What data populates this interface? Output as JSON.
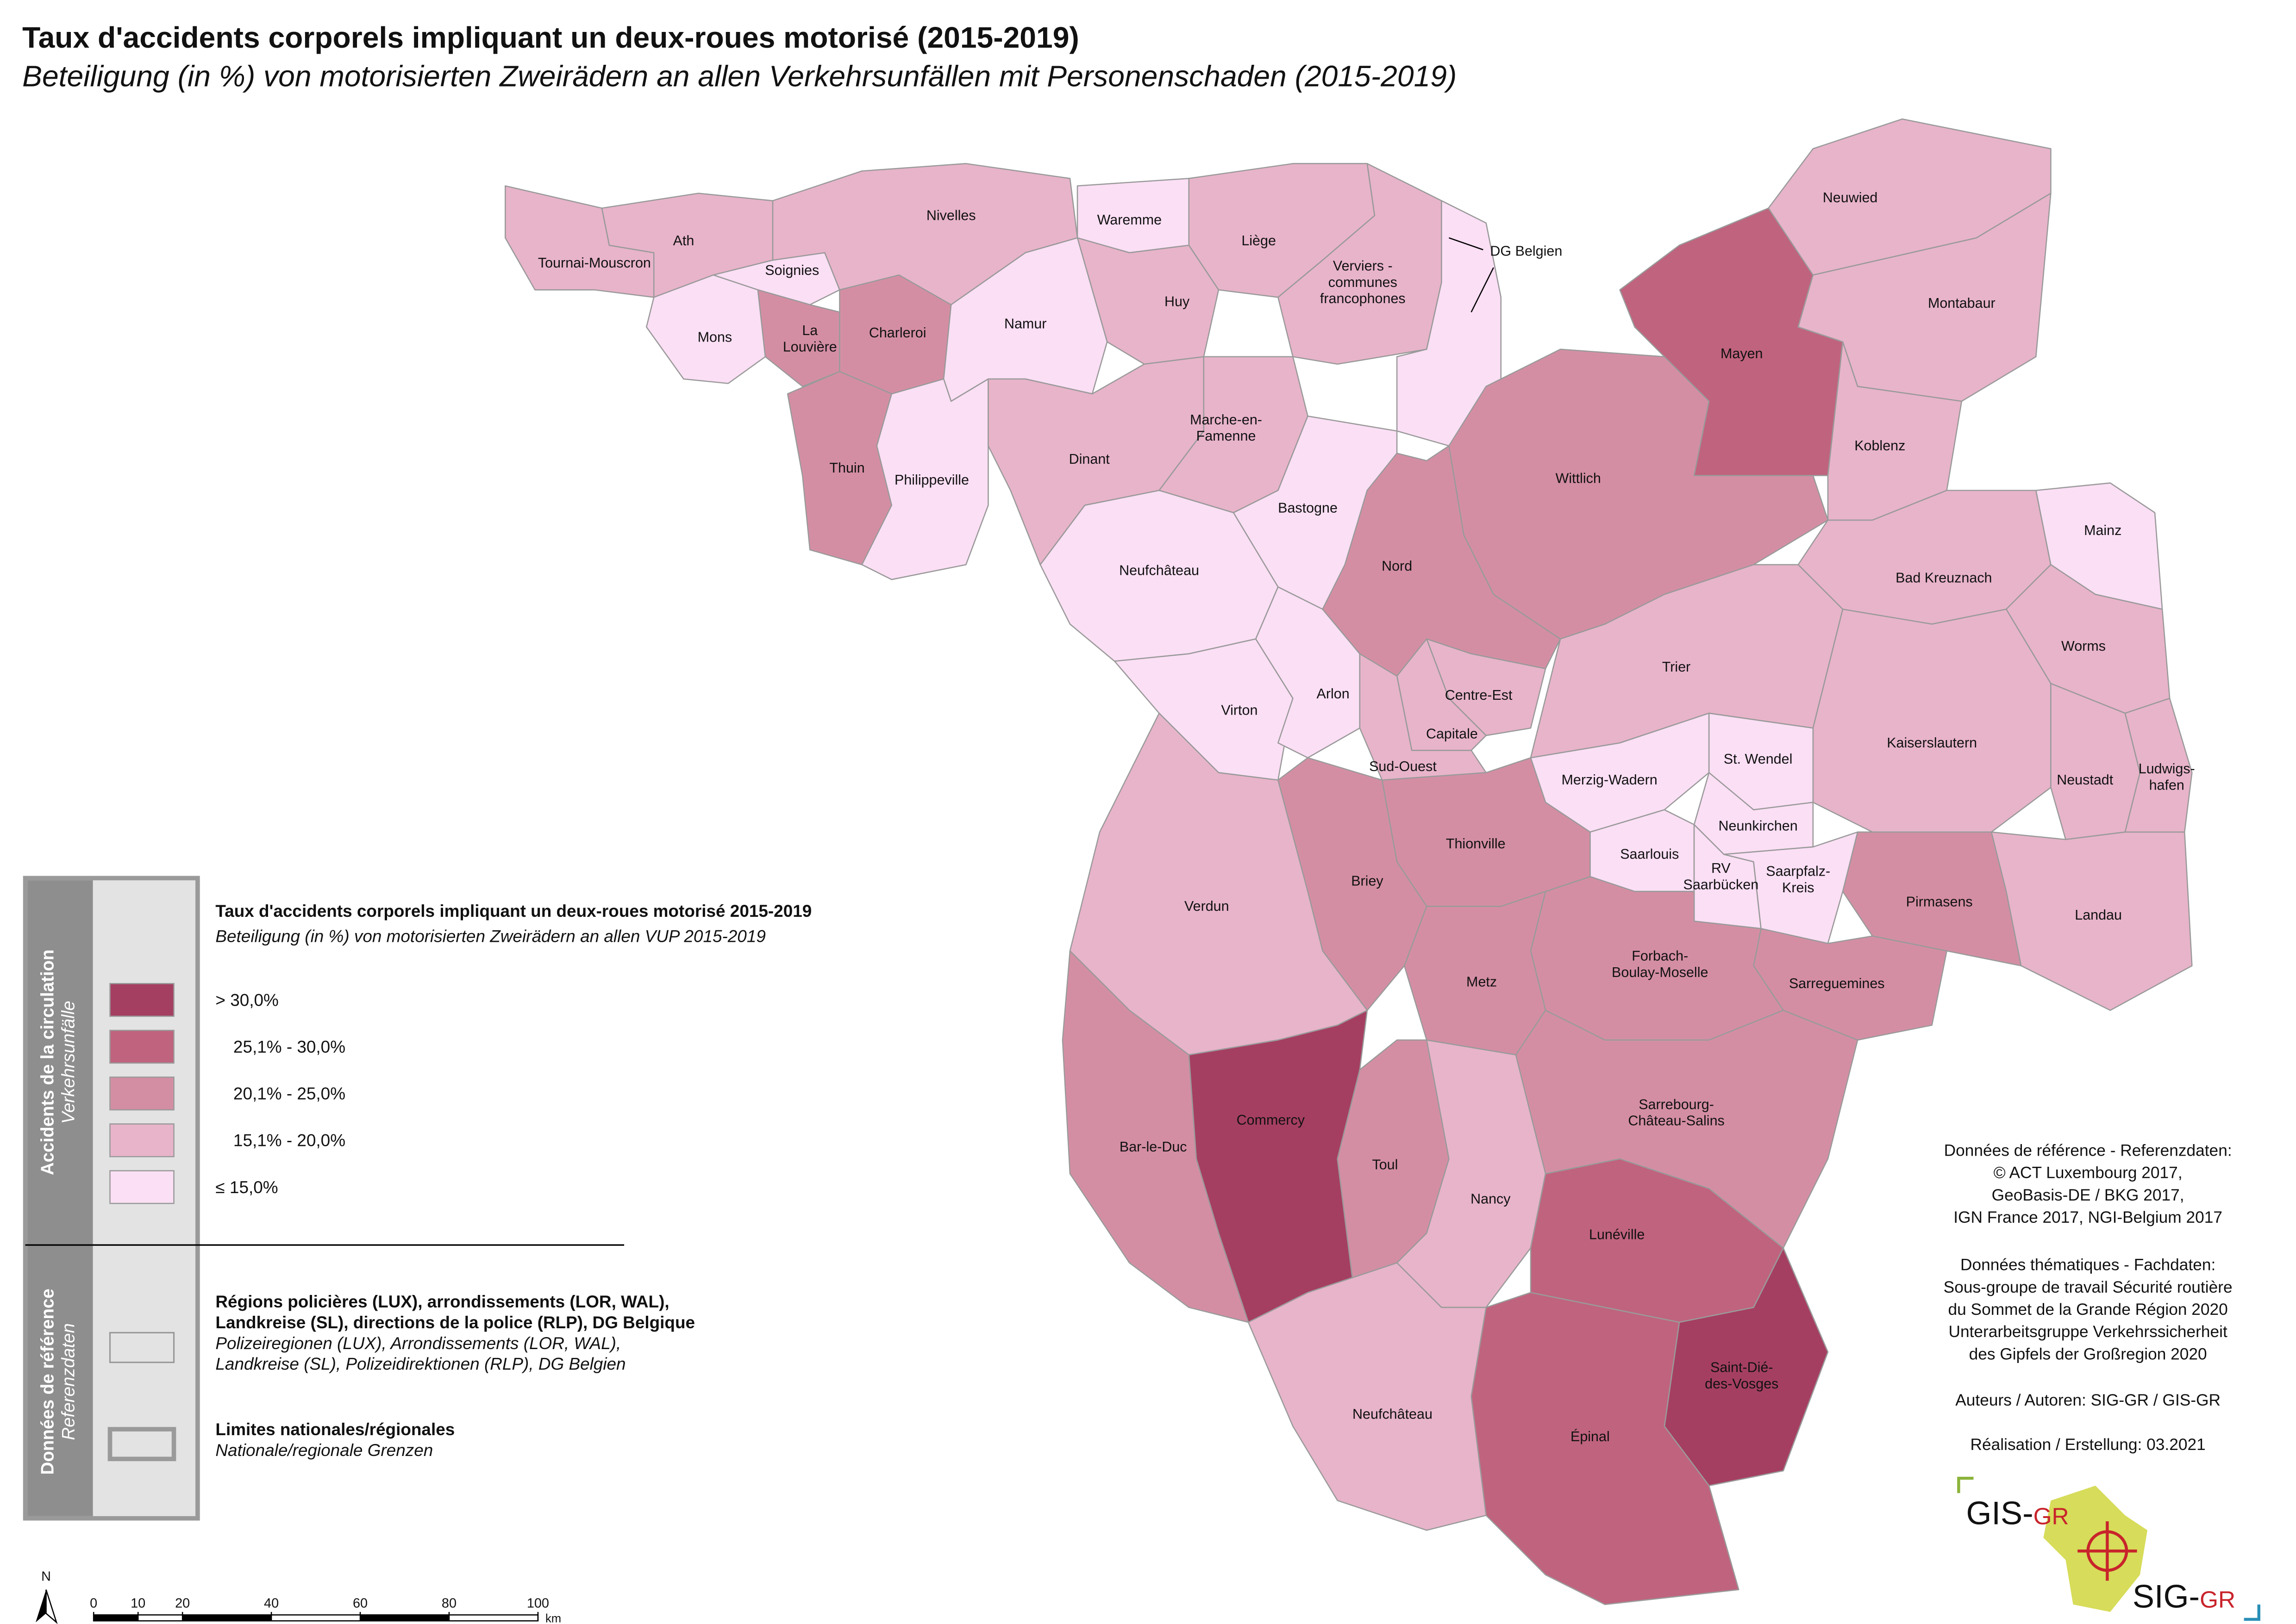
{
  "title": "Taux d'accidents corporels impliquant un deux-roues motorisé (2015-2019)",
  "subtitle": "Beteiligung (in %) von motorisierten Zweirädern an allen Verkehrsunfällen mit Personenschaden (2015-2019)",
  "legend": {
    "side_title": "Accidents de la circulation",
    "side_subtitle": "Verkehrsunfälle",
    "heading": "Taux d'accidents corporels impliquant un deux-roues motorisé 2015-2019",
    "subheading": "Beteiligung (in %) von motorisierten Zweirädern an allen VUP 2015-2019",
    "classes": [
      {
        "label": "> 30,0%",
        "color": "#a53f62"
      },
      {
        "label": "25,1% - 30,0%",
        "color": "#c0637e"
      },
      {
        "label": "20,1% - 25,0%",
        "color": "#d48ea4"
      },
      {
        "label": "15,1% - 20,0%",
        "color": "#e8b4ca"
      },
      {
        "label": "≤ 15,0%",
        "color": "#fbdff5"
      }
    ]
  },
  "reference": {
    "side_title": "Données de référence",
    "side_subtitle": "Referenzdaten",
    "items": [
      {
        "label": [
          "Régions policières (LUX), arrondissements (LOR, WAL),",
          "Landkreise (SL), directions de la police (RLP), DG Belgique"
        ],
        "sublabel": [
          "Polizeiregionen (LUX), Arrondissements (LOR, WAL),",
          "Landkreise (SL), Polizeidirektionen (RLP), DG Belgien"
        ]
      },
      {
        "label": [
          "Limites nationales/régionales"
        ],
        "sublabel": [
          "Nationale/regionale Grenzen"
        ]
      }
    ]
  },
  "regions": [
    {
      "label": [
        "Tournai-Mouscron"
      ],
      "color": "#e8b4ca"
    },
    {
      "label": [
        "Ath"
      ],
      "color": "#e8b4ca"
    },
    {
      "label": [
        "Soignies"
      ],
      "color": "#fbdff5"
    },
    {
      "label": [
        "Mons"
      ],
      "color": "#fbdff5"
    },
    {
      "label": [
        "La",
        "Louvière"
      ],
      "color": "#d48ea4"
    },
    {
      "label": [
        "Charleroi"
      ],
      "color": "#d48ea4"
    },
    {
      "label": [
        "Nivelles"
      ],
      "color": "#e8b4ca"
    },
    {
      "label": [
        "Waremme"
      ],
      "color": "#fbdff5"
    },
    {
      "label": [
        "Liège"
      ],
      "color": "#e8b4ca"
    },
    {
      "label": [
        "Huy"
      ],
      "color": "#e8b4ca"
    },
    {
      "label": [
        "Namur"
      ],
      "color": "#fbdff5"
    },
    {
      "label": [
        "Verviers -",
        "communes",
        "francophones"
      ],
      "color": "#e8b4ca"
    },
    {
      "label": [
        "DG Belgien"
      ],
      "color": "#fbdff5"
    },
    {
      "label": [
        "Thuin"
      ],
      "color": "#d48ea4"
    },
    {
      "label": [
        "Philippeville"
      ],
      "color": "#fbdff5"
    },
    {
      "label": [
        "Dinant"
      ],
      "color": "#e8b4ca"
    },
    {
      "label": [
        "Marche-en-",
        "Famenne"
      ],
      "color": "#e8b4ca"
    },
    {
      "label": [
        "Bastogne"
      ],
      "color": "#fbdff5"
    },
    {
      "label": [
        "Neufchâteau"
      ],
      "color": "#fbdff5"
    },
    {
      "label": [
        "Virton"
      ],
      "color": "#fbdff5"
    },
    {
      "label": [
        "Arlon"
      ],
      "color": "#fbdff5"
    },
    {
      "label": [
        "Nord"
      ],
      "color": "#d48ea4"
    },
    {
      "label": [
        "Centre-Est"
      ],
      "color": "#e8b4ca"
    },
    {
      "label": [
        "Capitale"
      ],
      "color": "#e8b4ca"
    },
    {
      "label": [
        "Sud-Ouest"
      ],
      "color": "#e8b4ca"
    },
    {
      "label": [
        "Wittlich"
      ],
      "color": "#d48ea4"
    },
    {
      "label": [
        "Mayen"
      ],
      "color": "#c0637e"
    },
    {
      "label": [
        "Neuwied"
      ],
      "color": "#e8b4ca"
    },
    {
      "label": [
        "Montabaur"
      ],
      "color": "#e8b4ca"
    },
    {
      "label": [
        "Koblenz"
      ],
      "color": "#e8b4ca"
    },
    {
      "label": [
        "Bad Kreuznach"
      ],
      "color": "#e8b4ca"
    },
    {
      "label": [
        "Mainz"
      ],
      "color": "#fbdff5"
    },
    {
      "label": [
        "Worms"
      ],
      "color": "#e8b4ca"
    },
    {
      "label": [
        "Trier"
      ],
      "color": "#e8b4ca"
    },
    {
      "label": [
        "Kaiserslautern"
      ],
      "color": "#e8b4ca"
    },
    {
      "label": [
        "Neustadt"
      ],
      "color": "#e8b4ca"
    },
    {
      "label": [
        "Ludwigs-",
        "hafen"
      ],
      "color": "#e8b4ca"
    },
    {
      "label": [
        "Landau"
      ],
      "color": "#e8b4ca"
    },
    {
      "label": [
        "Pirmasens"
      ],
      "color": "#d48ea4"
    },
    {
      "label": [
        "Merzig-Wadern"
      ],
      "color": "#fbdff5"
    },
    {
      "label": [
        "St. Wendel"
      ],
      "color": "#fbdff5"
    },
    {
      "label": [
        "Neunkirchen"
      ],
      "color": "#fbdff5"
    },
    {
      "label": [
        "Saarlouis"
      ],
      "color": "#fbdff5"
    },
    {
      "label": [
        "RV",
        "Saarbücken"
      ],
      "color": "#fbdff5"
    },
    {
      "label": [
        "Saarpfalz-",
        "Kreis"
      ],
      "color": "#fbdff5"
    },
    {
      "label": [
        "Sarreguemines"
      ],
      "color": "#d48ea4"
    },
    {
      "label": [
        "Forbach-",
        "Boulay-Moselle"
      ],
      "color": "#d48ea4"
    },
    {
      "label": [
        "Thionville"
      ],
      "color": "#d48ea4"
    },
    {
      "label": [
        "Briey"
      ],
      "color": "#d48ea4"
    },
    {
      "label": [
        "Metz"
      ],
      "color": "#d48ea4"
    },
    {
      "label": [
        "Verdun"
      ],
      "color": "#e8b4ca"
    },
    {
      "label": [
        "Sarrebourg-",
        "Château-Salins"
      ],
      "color": "#d48ea4"
    },
    {
      "label": [
        "Commercy"
      ],
      "color": "#a53f62"
    },
    {
      "label": [
        "Bar-le-Duc"
      ],
      "color": "#d48ea4"
    },
    {
      "label": [
        "Toul"
      ],
      "color": "#d48ea4"
    },
    {
      "label": [
        "Nancy"
      ],
      "color": "#e8b4ca"
    },
    {
      "label": [
        "Lunéville"
      ],
      "color": "#c0637e"
    },
    {
      "label": [
        "Saint-Dié-",
        "des-Vosges"
      ],
      "color": "#a53f62"
    },
    {
      "label": [
        "Épinal"
      ],
      "color": "#c0637e"
    },
    {
      "label": [
        "Neufchâteau"
      ],
      "color": "#e8b4ca"
    }
  ],
  "credits": [
    "Données de référence - Referenzdaten:",
    "© ACT Luxembourg 2017,",
    "GeoBasis-DE / BKG 2017,",
    "IGN France 2017, NGI-Belgium 2017",
    "Données thématiques - Fachdaten:",
    "Sous-groupe de travail Sécurité routière",
    "du Sommet de la Grande Région 2020",
    "Unterarbeitsgruppe Verkehrssicherheit",
    "des Gipfels der Großregion 2020",
    "Auteurs / Autoren: SIG-GR / GIS-GR",
    "Réalisation / Erstellung: 03.2021"
  ],
  "logo": {
    "top_prefix": "GIS-",
    "top_suffix": "GR",
    "bottom_prefix": "SIG-",
    "bottom_suffix": "GR"
  },
  "north": "N",
  "scale": {
    "ticks": [
      0,
      10,
      20,
      40,
      60,
      80,
      100
    ],
    "unit": "km"
  }
}
